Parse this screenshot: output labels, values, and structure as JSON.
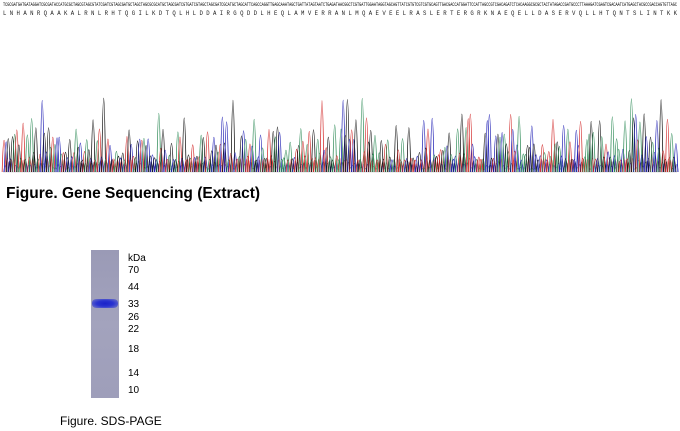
{
  "sequencing": {
    "dna_sequence": "TCGCGATGATGATAGGATCGCGATACCATGCGCTAGCGTAGCGTATCGATCGTAGCGATGCTAGCTAGCGCGCATGCTAGCGATCGTGATCGTAGCTAGCGATCGCATGCTAGCATTCAGCCAGGTTGAGCAAATAGCTGATTATAGTAATCTGAGATAACGGCTCGTGATTGGAATAGGTAGCAGTTATCGTGTCGTCGTGCAGTTGACGACCATGGATTCCATTAGCCGTCGACAGATCTCACAAGGCGCGCTACTATAGACCGATGCCCTTAAAGATCGAGTCGACAATCATGAGCTACGCCGACCAGTGTTAGC",
    "protein_sequence": "L N H A N R Q A A K A L R N L R H T Q G I L K D T Q L H L D D A I R G Q D D L H E Q L A M V E R R A N L M Q A E V E E L R A S L E R T E R G R K N A E Q E L L D A S E R V Q L L H T Q N T S L I N T K K",
    "trace_colors": {
      "A": "#2e8b57",
      "C": "#1f1fb4",
      "G": "#111111",
      "T": "#d22a2a"
    }
  },
  "caption_main": "Figure. Gene Sequencing (Extract)",
  "gel": {
    "unit": "kDa",
    "markers": [
      "70",
      "44",
      "33",
      "26",
      "22",
      "18",
      "14",
      "10"
    ],
    "band_color": "#1b22c8"
  },
  "caption_sub": "Figure. SDS-PAGE"
}
